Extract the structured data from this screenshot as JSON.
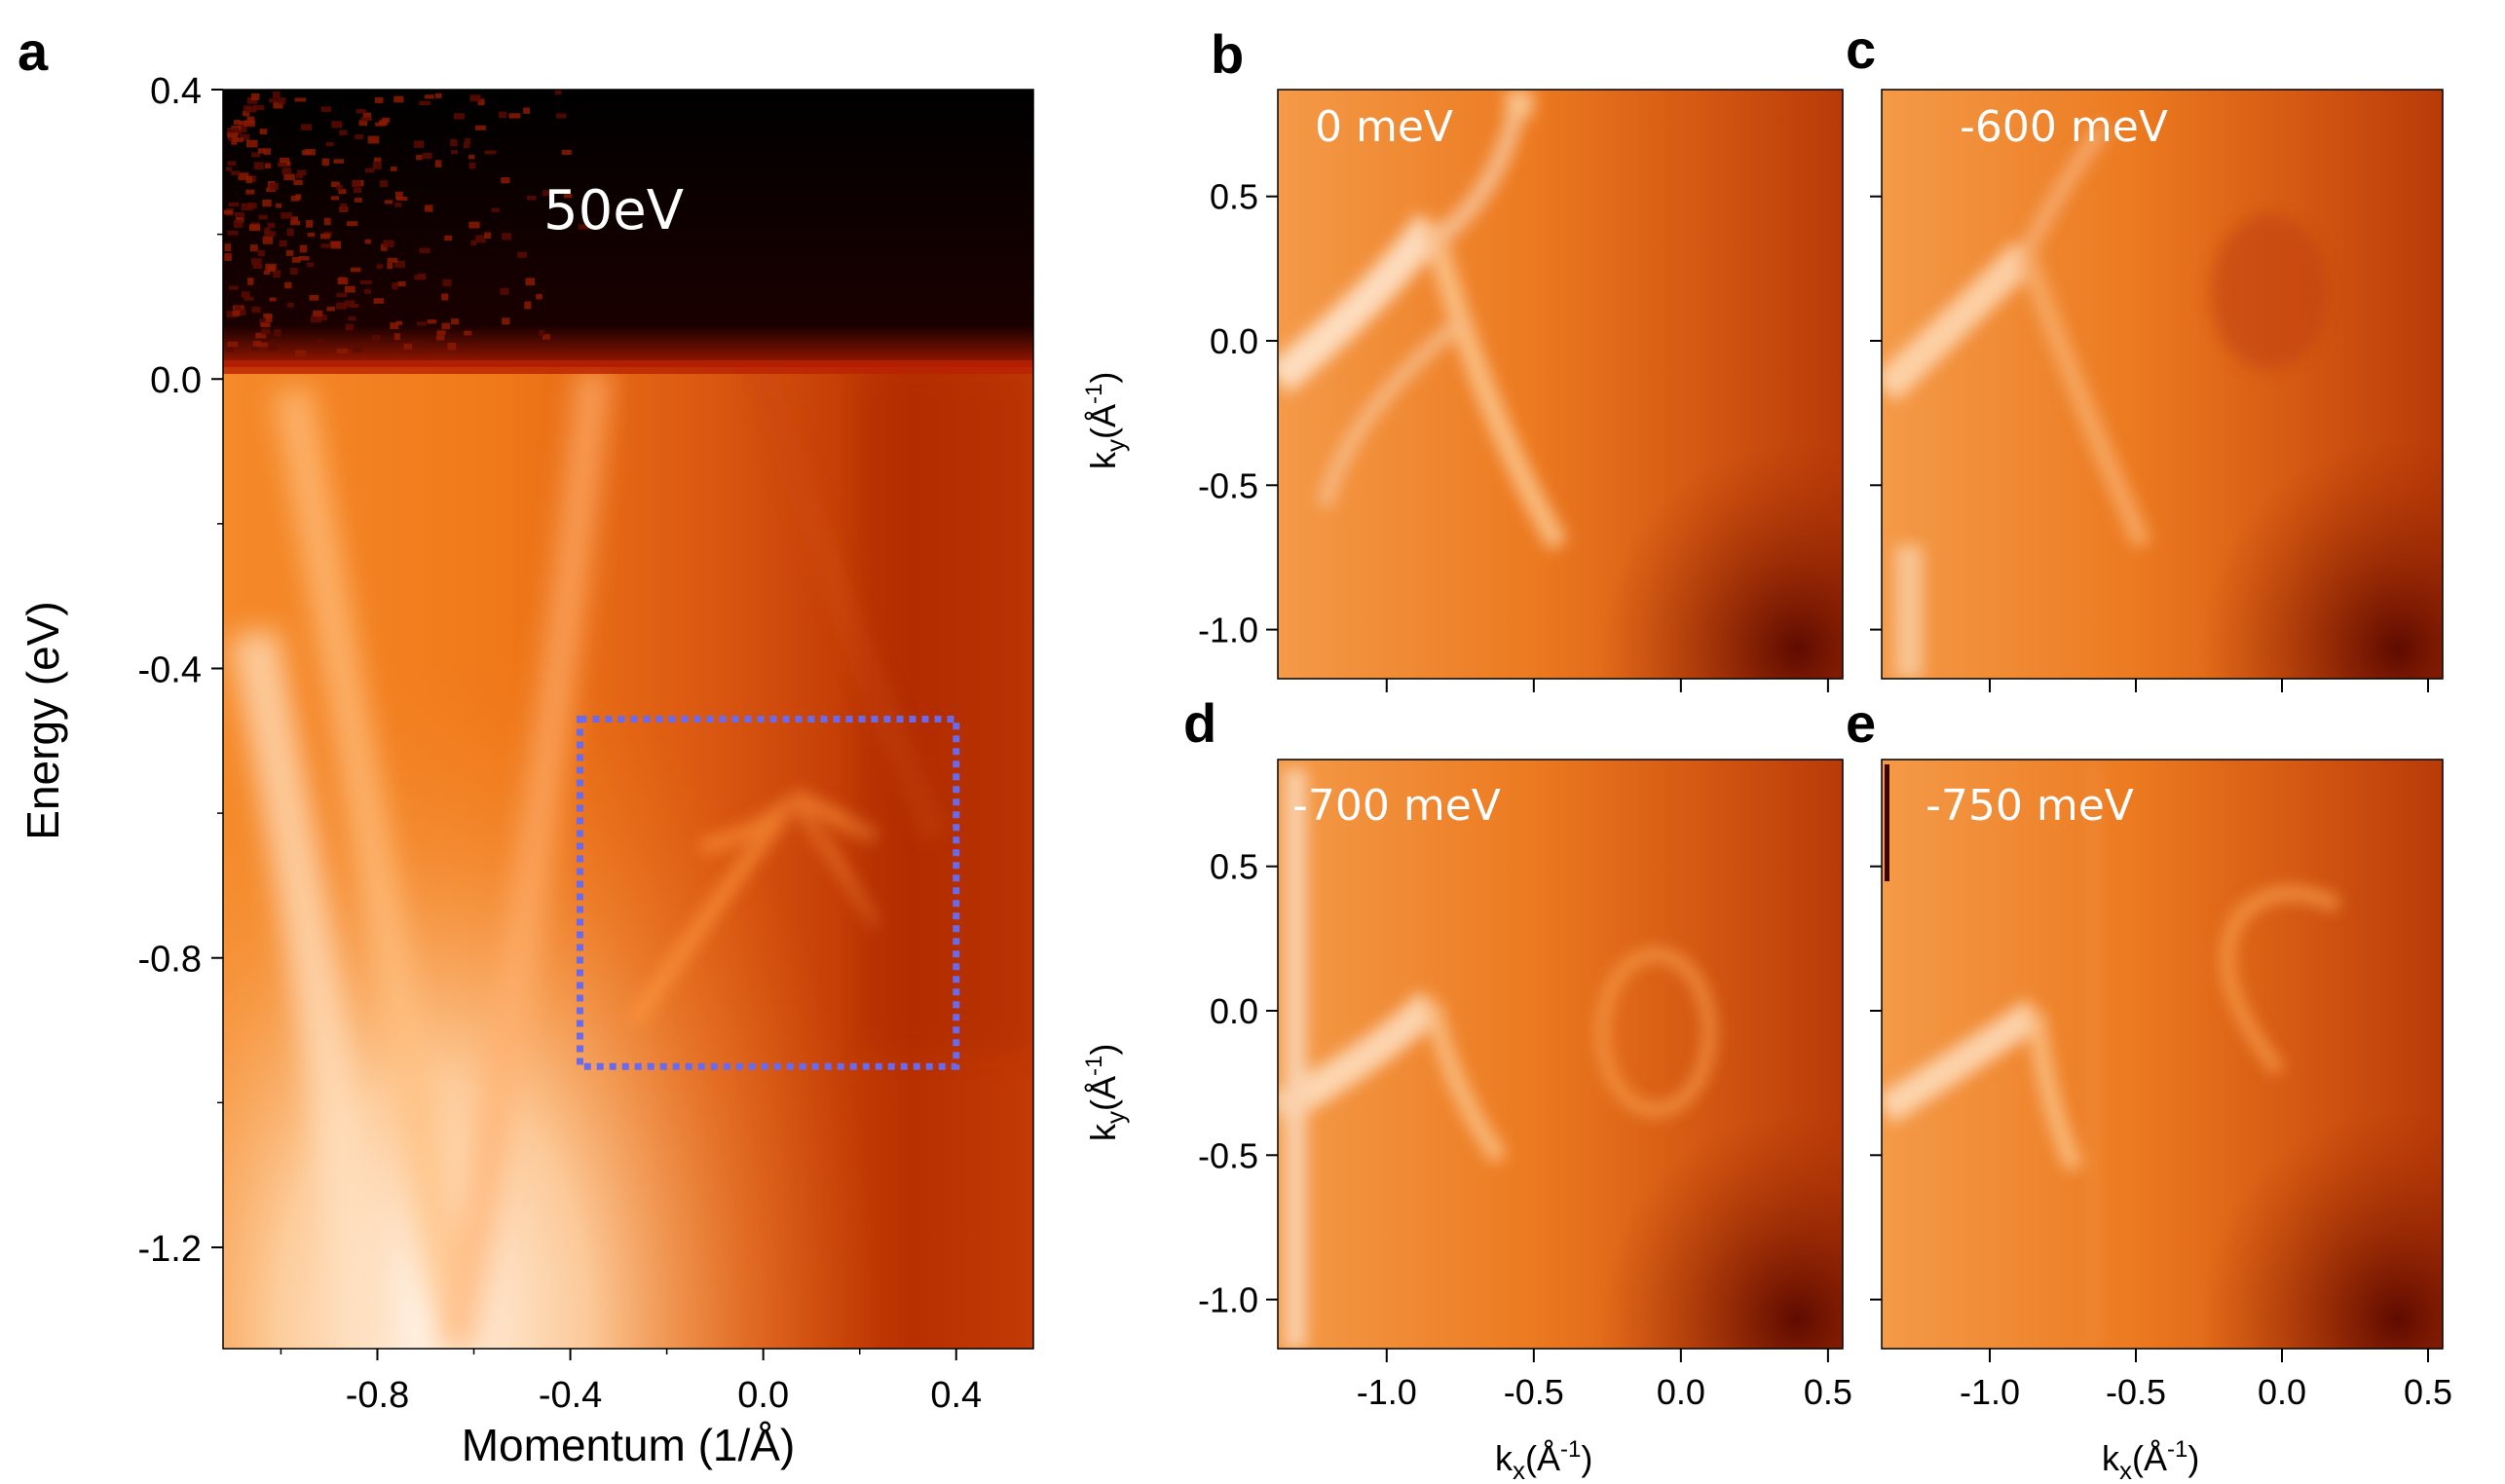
{
  "figure": {
    "description_colors": {
      "bright": "#fff4e8",
      "orange": "#f07818",
      "red": "#b83000",
      "dark": "#4a0800",
      "black": "#000000",
      "box": "#6a6aee"
    }
  },
  "chart_data": [
    {
      "panel": "a",
      "type": "heatmap",
      "title": "",
      "annotation": "50eV",
      "xlabel": "Momentum (1/Å)",
      "ylabel": "Energy (eV)",
      "xlim": [
        -1.12,
        0.56
      ],
      "ylim": [
        -1.34,
        0.4
      ],
      "xticks": [
        -0.8,
        -0.4,
        0.0,
        0.4
      ],
      "xtick_labels": [
        "-0.8",
        "-0.4",
        "0.0",
        "0.4"
      ],
      "yticks": [
        0.4,
        0.0,
        -0.4,
        -0.8,
        -1.2
      ],
      "ytick_labels": [
        "0.4",
        "0.0",
        "-0.4",
        "-0.8",
        "-1.2"
      ],
      "highlight_box": {
        "x": [
          -0.38,
          0.4
        ],
        "y": [
          -0.95,
          -0.47
        ],
        "style": "dotted",
        "color": "#6a6aee"
      }
    },
    {
      "panel": "b",
      "type": "heatmap",
      "annotation": "0 meV",
      "xlim": [
        -1.37,
        0.55
      ],
      "ylim": [
        -1.17,
        0.87
      ],
      "yticks": [
        0.5,
        0.0,
        -0.5,
        -1.0
      ],
      "ytick_labels": [
        "0.5",
        "0.0",
        "-0.5",
        "-1.0"
      ],
      "ylabel": "ky(Å-1)",
      "xticks": [
        -1.0,
        -0.5,
        0.0,
        0.5
      ],
      "xtick_labels": []
    },
    {
      "panel": "c",
      "type": "heatmap",
      "annotation": "-600 meV",
      "xlim": [
        -1.37,
        0.55
      ],
      "ylim": [
        -1.17,
        0.87
      ],
      "yticks": [
        0.5,
        0.0,
        -0.5,
        -1.0
      ],
      "ytick_labels": [],
      "xticks": [
        -1.0,
        -0.5,
        0.0,
        0.5
      ],
      "xtick_labels": []
    },
    {
      "panel": "d",
      "type": "heatmap",
      "annotation": "-700 meV",
      "xlim": [
        -1.37,
        0.55
      ],
      "ylim": [
        -1.17,
        0.87
      ],
      "yticks": [
        0.5,
        0.0,
        -0.5,
        -1.0
      ],
      "ytick_labels": [
        "0.5",
        "0.0",
        "-0.5",
        "-1.0"
      ],
      "ylabel": "ky(Å-1)",
      "xticks": [
        -1.0,
        -0.5,
        0.0,
        0.5
      ],
      "xtick_labels": [
        "-1.0",
        "-0.5",
        "0.0",
        "0.5"
      ],
      "xlabel": "kx(Å-1)"
    },
    {
      "panel": "e",
      "type": "heatmap",
      "annotation": "-750 meV",
      "xlim": [
        -1.37,
        0.55
      ],
      "ylim": [
        -1.17,
        0.87
      ],
      "yticks": [
        0.5,
        0.0,
        -0.5,
        -1.0
      ],
      "ytick_labels": [],
      "xticks": [
        -1.0,
        -0.5,
        0.0,
        0.5
      ],
      "xtick_labels": [
        "-1.0",
        "-0.5",
        "0.0",
        "0.5"
      ],
      "xlabel": "kx(Å-1)"
    }
  ],
  "labels": {
    "panel_a": "a",
    "panel_b": "b",
    "panel_c": "c",
    "panel_d": "d",
    "panel_e": "e",
    "a_xlabel": "Momentum (1/Å)",
    "a_ylabel": "Energy (eV)",
    "a_annotation": "50eV",
    "b_annotation": "0 meV",
    "c_annotation": "-600 meV",
    "d_annotation": "-700 meV",
    "e_annotation": "-750 meV",
    "ky_main": "k",
    "ky_sub": "y",
    "ky_open": "(Å",
    "ky_sup": "-1",
    "ky_close": ")",
    "kx_main": "k",
    "kx_sub": "x",
    "kx_open": "(Å",
    "kx_sup": "-1",
    "kx_close": ")"
  }
}
